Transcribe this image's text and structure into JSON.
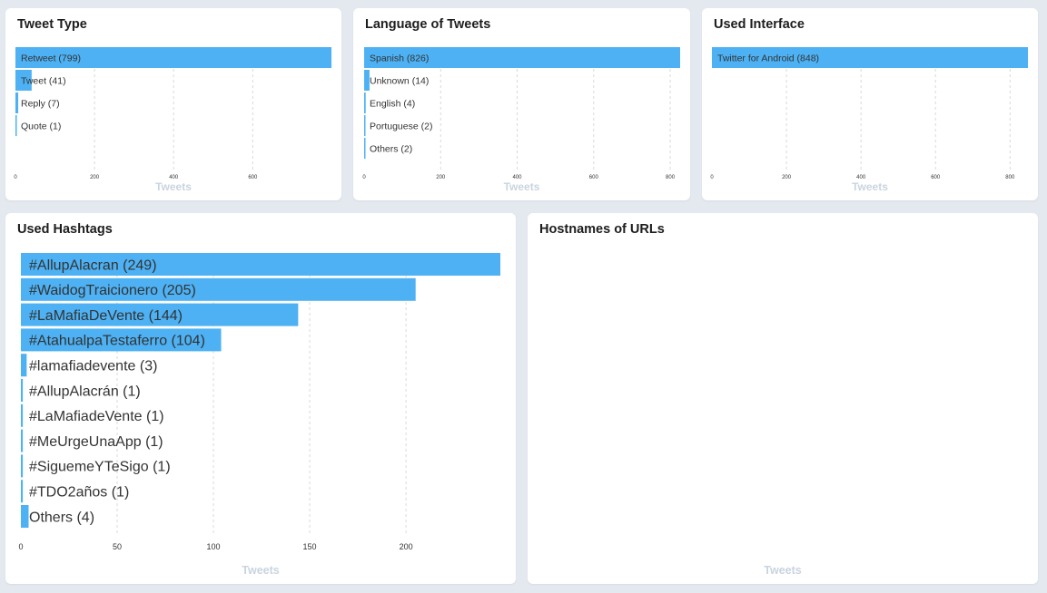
{
  "colors": {
    "bar": "#4db1f3",
    "axis_title": "#c9d4e0",
    "background": "#e4e9f0"
  },
  "charts": {
    "tweet_type": {
      "title": "Tweet Type",
      "xlabel": "Tweets"
    },
    "language": {
      "title": "Language of Tweets",
      "xlabel": "Tweets"
    },
    "interface": {
      "title": "Used Interface",
      "xlabel": "Tweets"
    },
    "hashtags": {
      "title": "Used Hashtags",
      "xlabel": "Tweets"
    },
    "hostnames": {
      "title": "Hostnames of URLs",
      "xlabel": "Tweets"
    }
  },
  "chart_data": [
    {
      "id": "tweet_type",
      "type": "bar",
      "orientation": "horizontal",
      "title": "Tweet Type",
      "xlabel": "Tweets",
      "xlim": [
        0,
        799
      ],
      "xticks": [
        0,
        200,
        400,
        600
      ],
      "categories": [
        "Retweet (799)",
        "Tweet (41)",
        "Reply (7)",
        "Quote (1)"
      ],
      "values": [
        799,
        41,
        7,
        1
      ],
      "grid": true
    },
    {
      "id": "language",
      "type": "bar",
      "orientation": "horizontal",
      "title": "Language of Tweets",
      "xlabel": "Tweets",
      "xlim": [
        0,
        826
      ],
      "xticks": [
        0,
        200,
        400,
        600,
        800
      ],
      "categories": [
        "Spanish (826)",
        "Unknown (14)",
        "English (4)",
        "Portuguese (2)",
        "Others (2)"
      ],
      "values": [
        826,
        14,
        4,
        2,
        2
      ],
      "grid": true
    },
    {
      "id": "interface",
      "type": "bar",
      "orientation": "horizontal",
      "title": "Used Interface",
      "xlabel": "Tweets",
      "xlim": [
        0,
        848
      ],
      "xticks": [
        0,
        200,
        400,
        600,
        800
      ],
      "categories": [
        "Twitter for Android (848)"
      ],
      "values": [
        848
      ],
      "grid": true
    },
    {
      "id": "hashtags",
      "type": "bar",
      "orientation": "horizontal",
      "title": "Used Hashtags",
      "xlabel": "Tweets",
      "xlim": [
        0,
        249
      ],
      "xticks": [
        0,
        50,
        100,
        150,
        200
      ],
      "categories": [
        "#AllupAlacran (249)",
        "#WaidogTraicionero (205)",
        "#LaMafiaDeVente (144)",
        "#AtahualpaTestaferro (104)",
        "#lamafiadevente (3)",
        "#AllupAlacrán (1)",
        "#LaMafiadeVente (1)",
        "#MeUrgeUnaApp (1)",
        "#SiguemeYTeSigo (1)",
        "#TDO2años (1)",
        "Others (4)"
      ],
      "values": [
        249,
        205,
        144,
        104,
        3,
        1,
        1,
        1,
        1,
        1,
        4
      ],
      "grid": true
    },
    {
      "id": "hostnames",
      "type": "bar",
      "orientation": "horizontal",
      "title": "Hostnames of URLs",
      "xlabel": "Tweets",
      "categories": [],
      "values": [],
      "grid": false
    }
  ]
}
